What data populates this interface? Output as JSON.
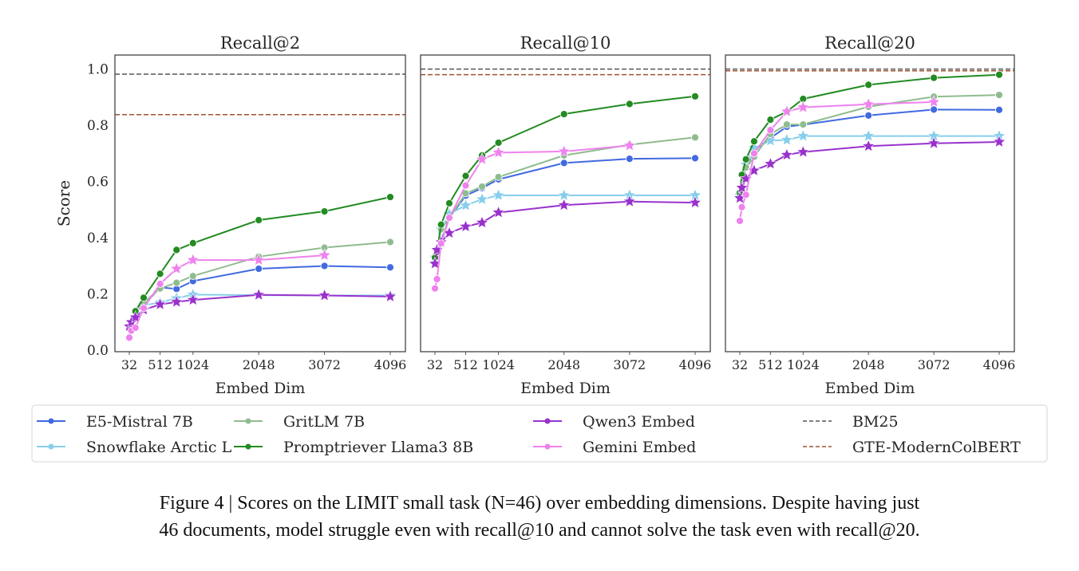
{
  "chart_data": [
    {
      "type": "line",
      "title": "Recall@2",
      "xlabel": "Embed Dim",
      "ylabel": "Score",
      "xlim": [
        32,
        4096
      ],
      "ylim": [
        -0.005,
        1.05
      ],
      "xticks": [
        "32",
        "512",
        "1024",
        "2048",
        "3072",
        "4096"
      ],
      "yticks": [
        "0.0",
        "0.2",
        "0.4",
        "0.6",
        "0.8",
        "1.0"
      ],
      "grid": false,
      "series": [
        {
          "name": "E5-Mistral 7B",
          "color": "#4169e1",
          "marker": "circle",
          "points": [
            [
              256,
              0.16
            ],
            [
              512,
              0.224
            ],
            [
              768,
              0.218
            ],
            [
              1024,
              0.246
            ],
            [
              2048,
              0.29
            ],
            [
              3072,
              0.3
            ],
            [
              4096,
              0.295
            ]
          ]
        },
        {
          "name": "Snowflake Arctic L",
          "color": "#87ceeb",
          "marker": "star",
          "points": [
            [
              256,
              0.16
            ],
            [
              512,
              0.17
            ],
            [
              768,
              0.185
            ],
            [
              1024,
              0.198
            ],
            [
              2048,
              0.196
            ],
            [
              3072,
              0.195
            ],
            [
              4096,
              0.195
            ]
          ]
        },
        {
          "name": "GritLM 7B",
          "color": "#8fbc8f",
          "marker": "circle",
          "points": [
            [
              128,
              0.14
            ],
            [
              256,
              0.17
            ],
            [
              512,
              0.22
            ],
            [
              768,
              0.24
            ],
            [
              1024,
              0.264
            ],
            [
              2048,
              0.333
            ],
            [
              3072,
              0.365
            ],
            [
              4096,
              0.385
            ]
          ]
        },
        {
          "name": "Promptriever Llama3 8B",
          "color": "#228b22",
          "marker": "circle",
          "points": [
            [
              128,
              0.139
            ],
            [
              256,
              0.187
            ],
            [
              512,
              0.272
            ],
            [
              768,
              0.357
            ],
            [
              1024,
              0.381
            ],
            [
              2048,
              0.463
            ],
            [
              3072,
              0.494
            ],
            [
              4096,
              0.545
            ]
          ]
        },
        {
          "name": "Qwen3 Embed",
          "color": "#9932cc",
          "marker": "star",
          "points": [
            [
              32,
              0.085
            ],
            [
              64,
              0.1
            ],
            [
              128,
              0.117
            ],
            [
              256,
              0.144
            ],
            [
              512,
              0.163
            ],
            [
              768,
              0.172
            ],
            [
              1024,
              0.179
            ],
            [
              2048,
              0.197
            ],
            [
              3072,
              0.195
            ],
            [
              4096,
              0.191
            ]
          ]
        },
        {
          "name": "Gemini Embed",
          "color": "#ee82ee",
          "marker": "mixed",
          "points": [
            [
              32,
              0.045
            ],
            [
              64,
              0.07
            ],
            [
              128,
              0.08
            ],
            [
              256,
              0.15
            ],
            [
              512,
              0.236
            ],
            [
              768,
              0.29
            ],
            [
              1024,
              0.321
            ],
            [
              2048,
              0.321
            ],
            [
              3072,
              0.338
            ]
          ]
        }
      ],
      "baselines": [
        {
          "name": "BM25",
          "color": "#555555",
          "value": 0.982
        },
        {
          "name": "GTE-ModernColBERT",
          "color": "#a0522d",
          "value": 0.838
        }
      ]
    },
    {
      "type": "line",
      "title": "Recall@10",
      "xlabel": "Embed Dim",
      "xlim": [
        32,
        4096
      ],
      "ylim": [
        -0.005,
        1.05
      ],
      "xticks": [
        "32",
        "512",
        "1024",
        "2048",
        "3072",
        "4096"
      ],
      "grid": false,
      "series": [
        {
          "name": "E5-Mistral 7B",
          "color": "#4169e1",
          "marker": "circle",
          "points": [
            [
              32,
              0.33
            ],
            [
              128,
              0.39
            ],
            [
              256,
              0.47
            ],
            [
              512,
              0.55
            ],
            [
              768,
              0.577
            ],
            [
              1024,
              0.608
            ],
            [
              2048,
              0.666
            ],
            [
              3072,
              0.681
            ],
            [
              4096,
              0.683
            ]
          ]
        },
        {
          "name": "Snowflake Arctic L",
          "color": "#87ceeb",
          "marker": "star",
          "points": [
            [
              32,
              0.33
            ],
            [
              128,
              0.43
            ],
            [
              256,
              0.485
            ],
            [
              512,
              0.515
            ],
            [
              768,
              0.537
            ],
            [
              1024,
              0.551
            ],
            [
              2048,
              0.551
            ],
            [
              3072,
              0.551
            ],
            [
              4096,
              0.551
            ]
          ]
        },
        {
          "name": "GritLM 7B",
          "color": "#8fbc8f",
          "marker": "circle",
          "points": [
            [
              32,
              0.335
            ],
            [
              128,
              0.43
            ],
            [
              256,
              0.47
            ],
            [
              512,
              0.558
            ],
            [
              768,
              0.582
            ],
            [
              1024,
              0.616
            ],
            [
              2048,
              0.693
            ],
            [
              3072,
              0.731
            ],
            [
              4096,
              0.757
            ]
          ]
        },
        {
          "name": "Promptriever Llama3 8B",
          "color": "#228b22",
          "marker": "circle",
          "points": [
            [
              32,
              0.33
            ],
            [
              64,
              0.35
            ],
            [
              128,
              0.447
            ],
            [
              256,
              0.523
            ],
            [
              512,
              0.62
            ],
            [
              768,
              0.693
            ],
            [
              1024,
              0.738
            ],
            [
              2048,
              0.84
            ],
            [
              3072,
              0.876
            ],
            [
              4096,
              0.903
            ]
          ]
        },
        {
          "name": "Qwen3 Embed",
          "color": "#9932cc",
          "marker": "star",
          "points": [
            [
              32,
              0.308
            ],
            [
              64,
              0.357
            ],
            [
              128,
              0.384
            ],
            [
              256,
              0.417
            ],
            [
              512,
              0.44
            ],
            [
              768,
              0.454
            ],
            [
              1024,
              0.49
            ],
            [
              2048,
              0.516
            ],
            [
              3072,
              0.529
            ],
            [
              4096,
              0.525
            ]
          ]
        },
        {
          "name": "Gemini Embed",
          "color": "#ee82ee",
          "marker": "mixed",
          "points": [
            [
              32,
              0.22
            ],
            [
              64,
              0.253
            ],
            [
              128,
              0.38
            ],
            [
              256,
              0.471
            ],
            [
              512,
              0.586
            ],
            [
              768,
              0.679
            ],
            [
              1024,
              0.703
            ],
            [
              2048,
              0.707
            ],
            [
              3072,
              0.728
            ]
          ]
        }
      ],
      "baselines": [
        {
          "name": "BM25",
          "color": "#555555",
          "value": 1.0
        },
        {
          "name": "GTE-ModernColBERT",
          "color": "#a0522d",
          "value": 0.98
        }
      ]
    },
    {
      "type": "line",
      "title": "Recall@20",
      "xlabel": "Embed Dim",
      "xlim": [
        32,
        4096
      ],
      "ylim": [
        -0.005,
        1.05
      ],
      "xticks": [
        "32",
        "512",
        "1024",
        "2048",
        "3072",
        "4096"
      ],
      "grid": false,
      "series": [
        {
          "name": "E5-Mistral 7B",
          "color": "#4169e1",
          "marker": "circle",
          "points": [
            [
              32,
              0.55
            ],
            [
              128,
              0.65
            ],
            [
              256,
              0.71
            ],
            [
              512,
              0.755
            ],
            [
              768,
              0.795
            ],
            [
              1024,
              0.802
            ],
            [
              2048,
              0.835
            ],
            [
              3072,
              0.856
            ],
            [
              4096,
              0.855
            ]
          ]
        },
        {
          "name": "Snowflake Arctic L",
          "color": "#87ceeb",
          "marker": "star",
          "points": [
            [
              32,
              0.55
            ],
            [
              128,
              0.66
            ],
            [
              256,
              0.72
            ],
            [
              512,
              0.745
            ],
            [
              768,
              0.748
            ],
            [
              1024,
              0.762
            ],
            [
              2048,
              0.762
            ],
            [
              3072,
              0.762
            ],
            [
              4096,
              0.762
            ]
          ]
        },
        {
          "name": "GritLM 7B",
          "color": "#8fbc8f",
          "marker": "circle",
          "points": [
            [
              32,
              0.56
            ],
            [
              128,
              0.65
            ],
            [
              256,
              0.688
            ],
            [
              512,
              0.769
            ],
            [
              768,
              0.803
            ],
            [
              1024,
              0.803
            ],
            [
              2048,
              0.866
            ],
            [
              3072,
              0.902
            ],
            [
              4096,
              0.908
            ]
          ]
        },
        {
          "name": "Promptriever Llama3 8B",
          "color": "#228b22",
          "marker": "circle",
          "points": [
            [
              32,
              0.56
            ],
            [
              64,
              0.624
            ],
            [
              128,
              0.679
            ],
            [
              256,
              0.743
            ],
            [
              512,
              0.82
            ],
            [
              768,
              0.849
            ],
            [
              1024,
              0.894
            ],
            [
              2048,
              0.944
            ],
            [
              3072,
              0.969
            ],
            [
              4096,
              0.98
            ]
          ]
        },
        {
          "name": "Qwen3 Embed",
          "color": "#9932cc",
          "marker": "star",
          "points": [
            [
              32,
              0.541
            ],
            [
              64,
              0.578
            ],
            [
              128,
              0.61
            ],
            [
              256,
              0.639
            ],
            [
              512,
              0.663
            ],
            [
              768,
              0.695
            ],
            [
              1024,
              0.705
            ],
            [
              2048,
              0.726
            ],
            [
              3072,
              0.736
            ],
            [
              4096,
              0.741
            ]
          ]
        },
        {
          "name": "Gemini Embed",
          "color": "#ee82ee",
          "marker": "mixed",
          "points": [
            [
              32,
              0.46
            ],
            [
              64,
              0.509
            ],
            [
              128,
              0.553
            ],
            [
              256,
              0.7
            ],
            [
              512,
              0.783
            ],
            [
              768,
              0.849
            ],
            [
              1024,
              0.864
            ],
            [
              2048,
              0.875
            ],
            [
              3072,
              0.883
            ]
          ]
        }
      ],
      "baselines": [
        {
          "name": "BM25",
          "color": "#555555",
          "value": 1.0
        },
        {
          "name": "GTE-ModernColBERT",
          "color": "#a0522d",
          "value": 0.994
        }
      ]
    }
  ],
  "legend": {
    "placement": "bottom"
  },
  "caption": {
    "line1": "Figure 4 | Scores on the LIMIT small task (N=46) over embedding dimensions. Despite having just",
    "line2": "46 documents, model struggle even with recall@10 and cannot solve the task even with recall@20."
  }
}
